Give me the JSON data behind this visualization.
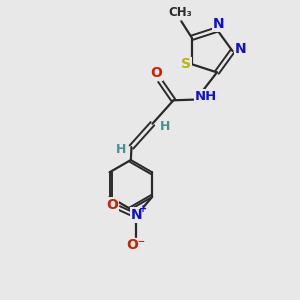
{
  "bg_color": "#e8e8e8",
  "bond_color": "#2a2a2a",
  "N_color": "#1010dd",
  "S_color": "#b8b800",
  "O_color": "#cc2200",
  "H_color": "#4a9090",
  "figsize": [
    3.0,
    3.0
  ],
  "dpi": 100,
  "xlim": [
    0,
    10
  ],
  "ylim": [
    0,
    10
  ]
}
